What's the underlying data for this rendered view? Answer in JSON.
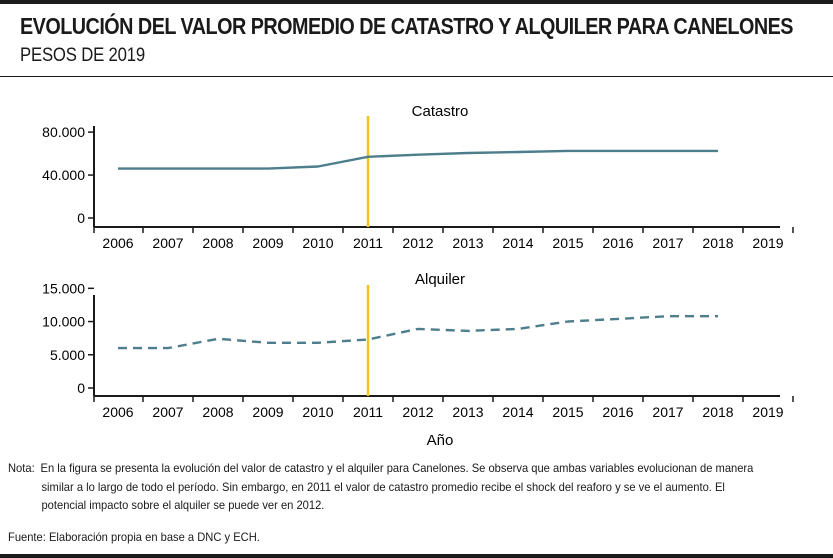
{
  "title": "EVOLUCIÓN DEL VALOR PROMEDIO DE CATASTRO Y ALQUILER PARA CANELONES",
  "subtitle": "PESOS DE 2019",
  "x_axis_label": "Año",
  "note_label": "Nota:",
  "note_text": "En la figura se presenta la evolución del valor de catastro y el alquiler para Canelones. Se observa que ambas variables evolucionan de manera similar a lo largo de todo el período. Sin embargo, en 2011 el valor de catastro promedio recibe el shock del reaforo y se ve el aumento. El potencial impacto sobre el alquiler se puede ver en 2012.",
  "source": "Fuente: Elaboración propia en base a DNC y ECH.",
  "colors": {
    "line": "#4e7e8c",
    "marker": "#f2c41a",
    "axis": "#1a1a1a"
  },
  "chart_data": [
    {
      "type": "line",
      "title": "Catastro",
      "line_style": "solid",
      "x": [
        2006,
        2007,
        2008,
        2009,
        2010,
        2011,
        2012,
        2013,
        2014,
        2015,
        2016,
        2017,
        2018
      ],
      "values": [
        46000,
        46000,
        46000,
        46000,
        48000,
        57000,
        59000,
        60500,
        61500,
        62500,
        62500,
        62500,
        62500
      ],
      "x_ticks": [
        2006,
        2007,
        2008,
        2009,
        2010,
        2011,
        2012,
        2013,
        2014,
        2015,
        2016,
        2017,
        2018,
        2019
      ],
      "y_ticks": [
        0,
        40000,
        80000
      ],
      "y_tick_labels": [
        "0",
        "40.000",
        "80.000"
      ],
      "ylim": [
        0,
        95000
      ],
      "vertical_marker_x": 2011
    },
    {
      "type": "line",
      "title": "Alquiler",
      "line_style": "dashed",
      "x": [
        2006,
        2007,
        2008,
        2009,
        2010,
        2011,
        2012,
        2013,
        2014,
        2015,
        2016,
        2017,
        2018
      ],
      "values": [
        6000,
        6000,
        7400,
        6800,
        6800,
        7300,
        8900,
        8600,
        8900,
        10000,
        10400,
        10800,
        10800
      ],
      "x_ticks": [
        2006,
        2007,
        2008,
        2009,
        2010,
        2011,
        2012,
        2013,
        2014,
        2015,
        2016,
        2017,
        2018,
        2019
      ],
      "y_ticks": [
        0,
        5000,
        10000,
        15000
      ],
      "y_tick_labels": [
        "0",
        "5.000",
        "10.000",
        "15.000"
      ],
      "ylim": [
        0,
        15500
      ],
      "vertical_marker_x": 2011
    }
  ]
}
